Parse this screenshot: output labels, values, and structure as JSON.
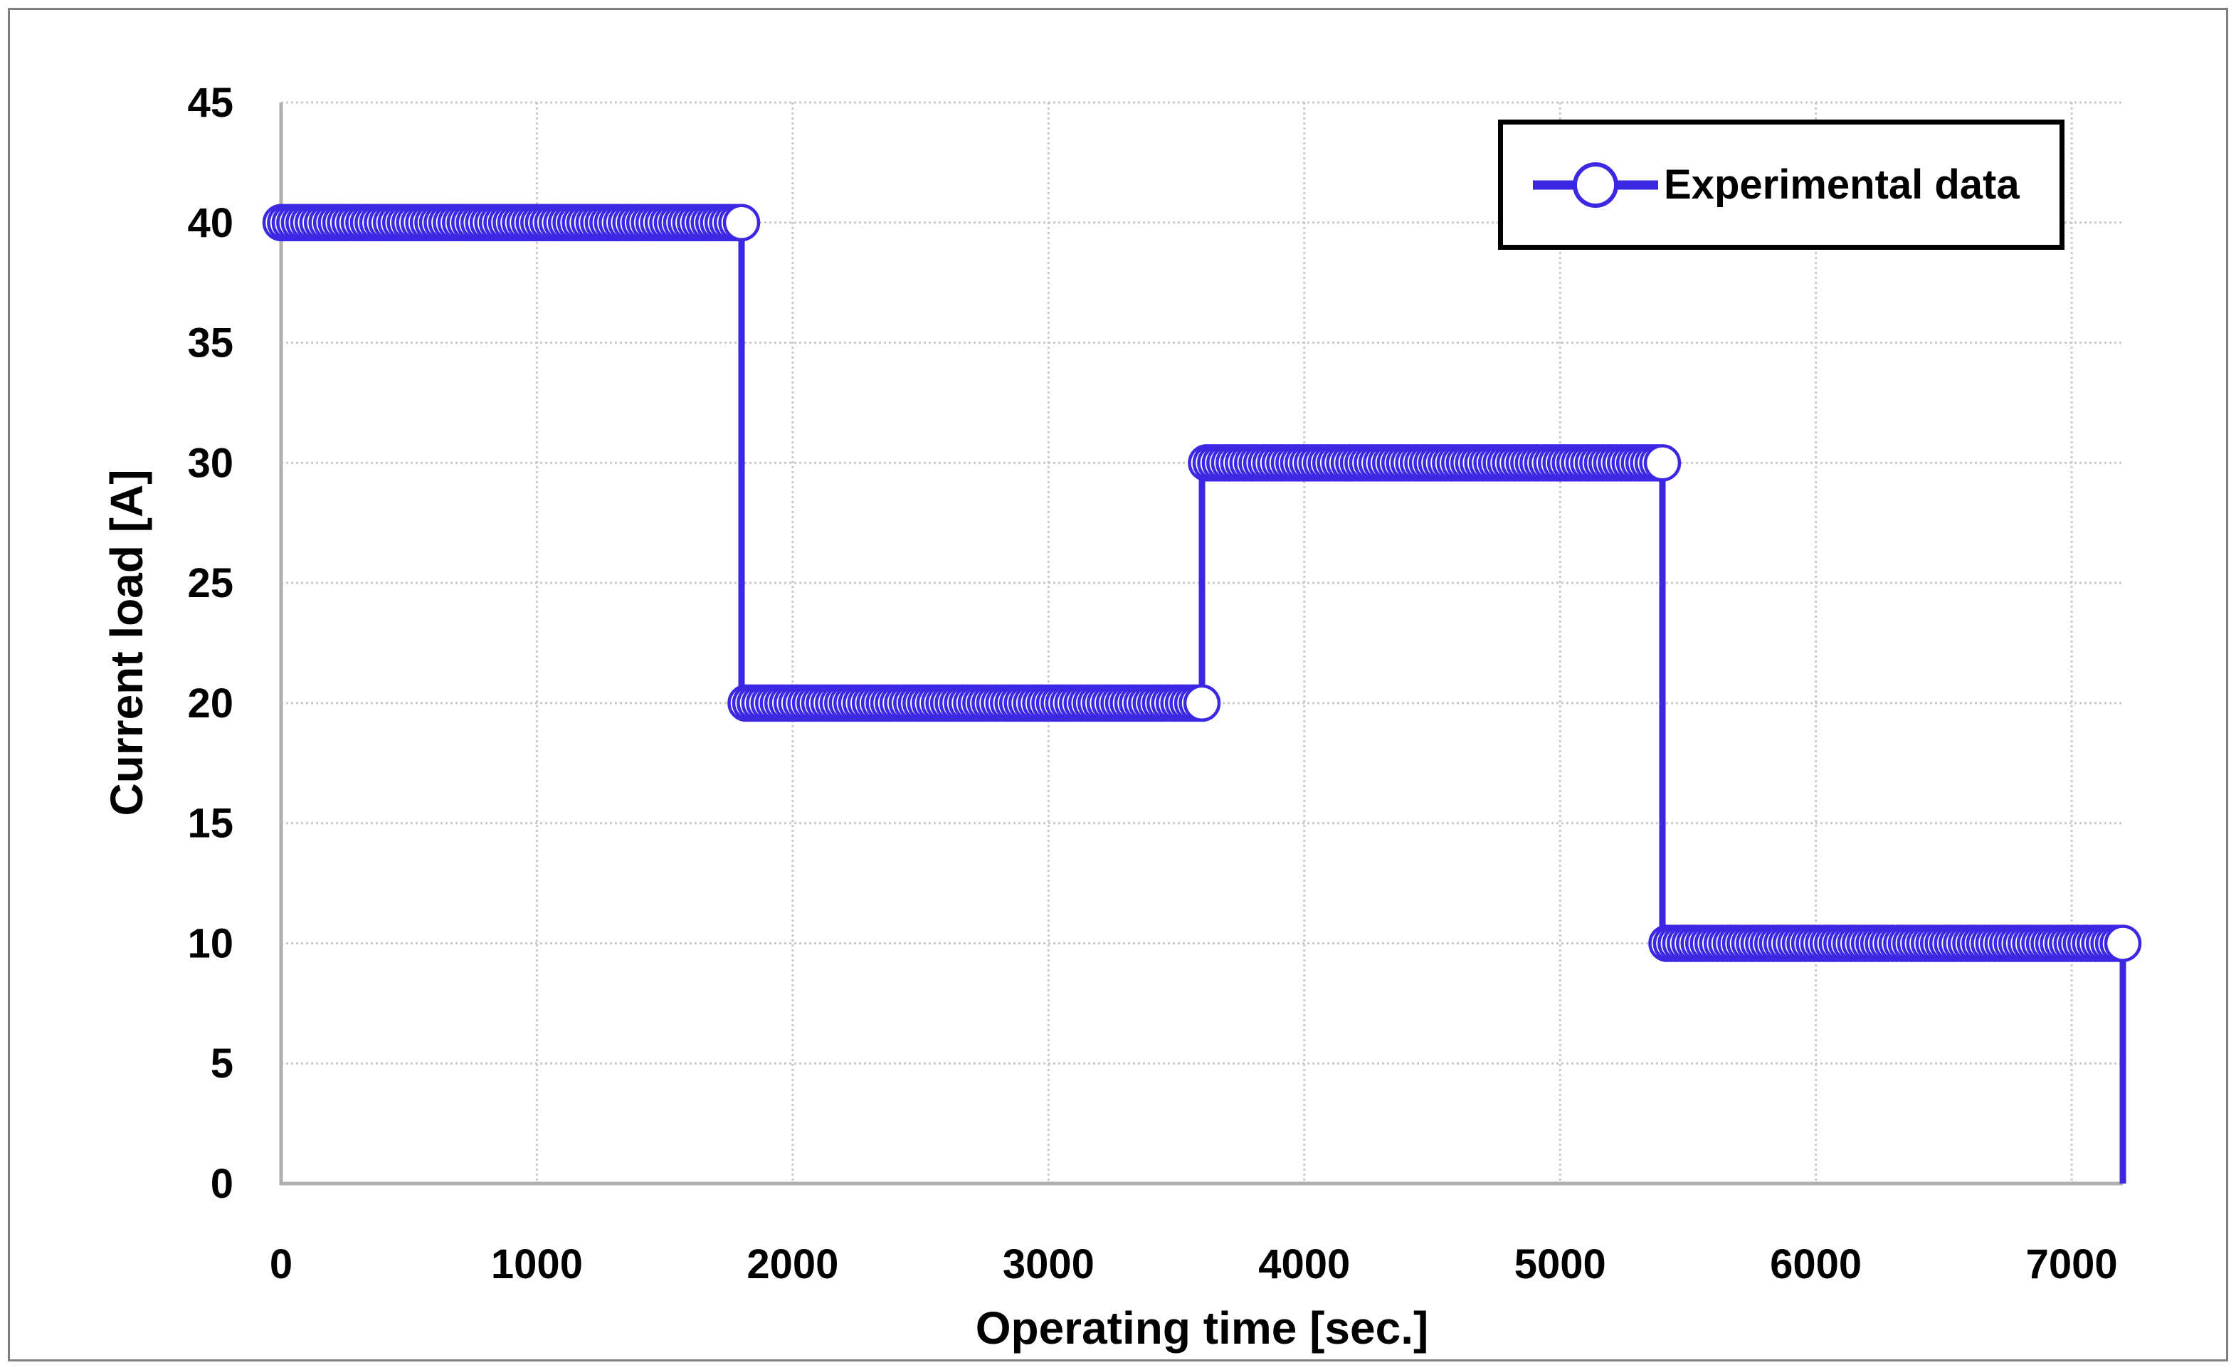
{
  "chart_data": {
    "type": "line",
    "subtype": "step-with-markers",
    "title": "",
    "xlabel": "Operating time [sec.]",
    "ylabel": "Current load [A]",
    "xlim": [
      0,
      7200
    ],
    "ylim": [
      0,
      45
    ],
    "x_ticks": [
      0,
      1000,
      2000,
      3000,
      4000,
      5000,
      6000,
      7000
    ],
    "y_ticks": [
      0,
      5,
      10,
      15,
      20,
      25,
      30,
      35,
      40,
      45
    ],
    "grid": true,
    "legend": {
      "label": "Experimental data",
      "position": "top-right"
    },
    "series": [
      {
        "name": "Experimental data",
        "color": "#3C28E2",
        "marker": "open-circle",
        "marker_fill": "#FFFFFF",
        "sample_interval_sec": 18,
        "steps": [
          {
            "from_sec": 0,
            "to_sec": 1800,
            "current_a": 40
          },
          {
            "from_sec": 1800,
            "to_sec": 3600,
            "current_a": 20
          },
          {
            "from_sec": 3600,
            "to_sec": 5400,
            "current_a": 30
          },
          {
            "from_sec": 5400,
            "to_sec": 7200,
            "current_a": 10
          }
        ],
        "end_point": {
          "sec": 7200,
          "current_a": 0
        }
      }
    ]
  },
  "colors": {
    "series_blue": "#3C28E2",
    "gridline": "#C9C9C9",
    "axis_line": "#AFAFAF",
    "figure_border": "#808080",
    "text": "#000000",
    "background": "#FFFFFF"
  }
}
